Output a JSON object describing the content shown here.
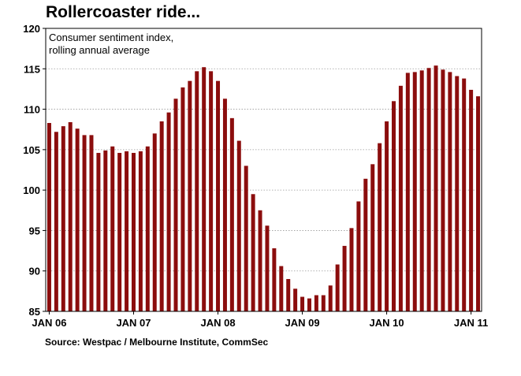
{
  "title": "Rollercoaster ride...",
  "source": "Source: Westpac / Melbourne Institute, CommSec",
  "colors": {
    "bar": "#8b0d0d",
    "grid": "#9a9a9a",
    "axis": "#000000"
  },
  "chart_data": {
    "type": "bar",
    "annotation": [
      "Consumer sentiment index,",
      "rolling annual average"
    ],
    "xlabel": "",
    "ylabel": "",
    "ylim": [
      85,
      120
    ],
    "yticks": [
      85,
      90,
      95,
      100,
      105,
      110,
      115,
      120
    ],
    "grid": true,
    "x_tick_labels": [
      {
        "label": "JAN 06",
        "index": 0
      },
      {
        "label": "JAN 07",
        "index": 12
      },
      {
        "label": "JAN 08",
        "index": 24
      },
      {
        "label": "JAN 09",
        "index": 36
      },
      {
        "label": "JAN 10",
        "index": 48
      },
      {
        "label": "JAN 11",
        "index": 60
      }
    ],
    "values": [
      108.3,
      107.2,
      107.9,
      108.4,
      107.6,
      106.8,
      106.8,
      104.6,
      104.9,
      105.4,
      104.6,
      104.8,
      104.6,
      104.8,
      105.4,
      107.0,
      108.5,
      109.6,
      111.3,
      112.7,
      113.5,
      114.7,
      115.2,
      114.7,
      113.5,
      111.3,
      108.9,
      106.1,
      103.0,
      99.5,
      97.5,
      95.6,
      92.8,
      90.6,
      89.0,
      87.8,
      86.8,
      86.6,
      87.0,
      87.0,
      88.2,
      90.8,
      93.1,
      95.3,
      98.6,
      101.4,
      103.2,
      105.8,
      108.5,
      111.0,
      112.9,
      114.5,
      114.6,
      114.8,
      115.1,
      115.4,
      114.9,
      114.6,
      114.1,
      113.8,
      112.4,
      111.6
    ]
  }
}
